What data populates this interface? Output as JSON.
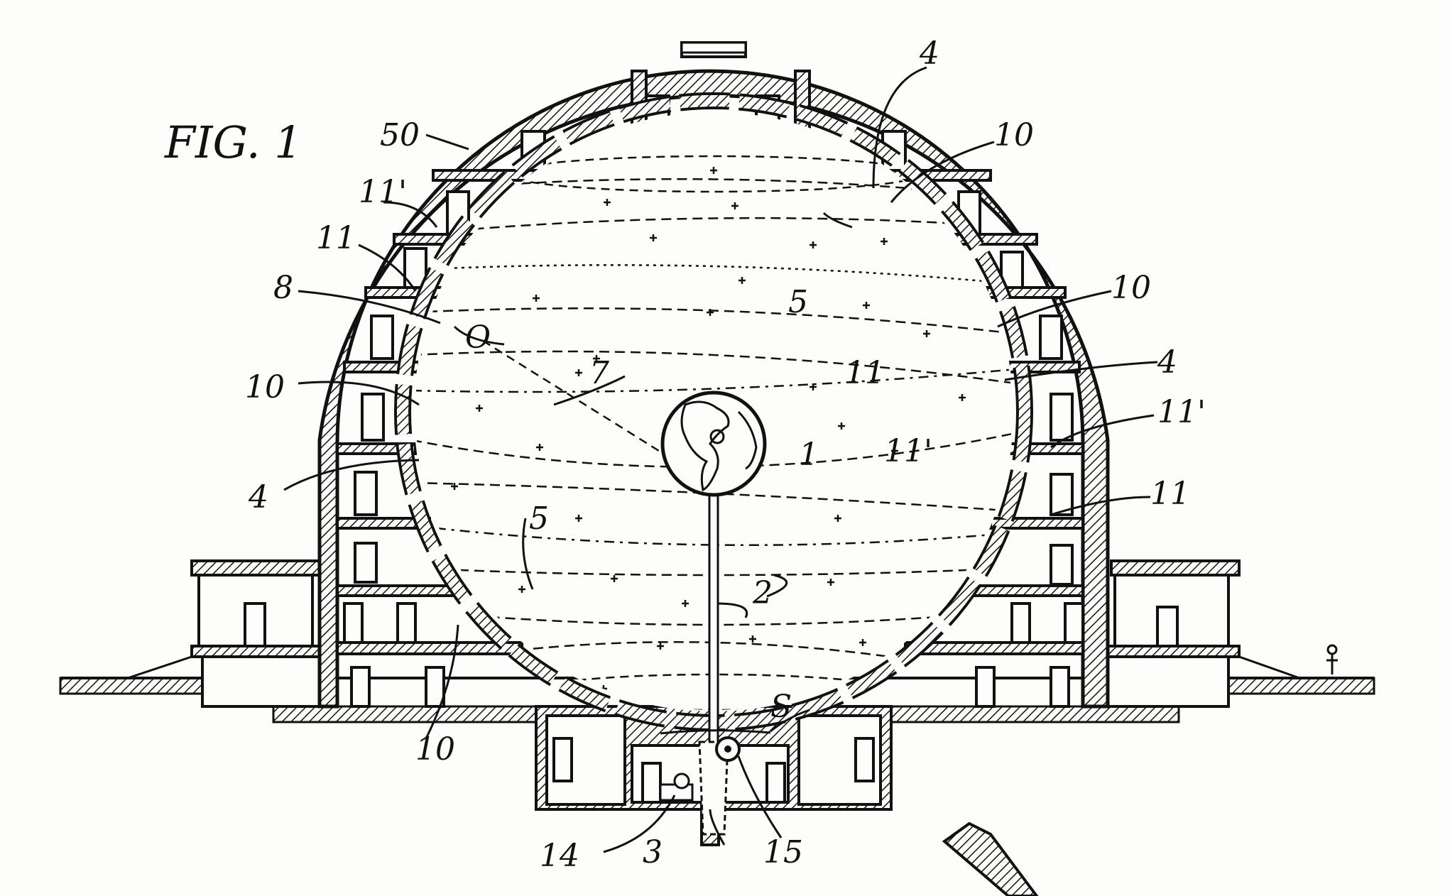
{
  "figure": {
    "title": "FIG. 1"
  },
  "reference_labels": {
    "earth": "1",
    "support_rod": "2",
    "base": "3",
    "ring_4_top": "4",
    "ring_4_right": "4",
    "ring_4_left": "4",
    "stars_top": "5",
    "stars_lower": "5",
    "ecliptic": "7",
    "observer": "8",
    "observer_point": "O",
    "panel_10_top_right": "10",
    "panel_10_right": "10",
    "panel_10_left": "10",
    "panel_10_bottom": "10",
    "line_11_left": "11",
    "line_11_prime_left": "11'",
    "line_11_center": "11",
    "line_11_prime_center": "11'",
    "line_11_prime_right": "11'",
    "line_11_right": "11",
    "motor": "14",
    "pulley": "15",
    "shaft_s": "S",
    "shell": "50"
  },
  "colors": {
    "ink": "#111111",
    "paper": "#fdfdfc"
  }
}
